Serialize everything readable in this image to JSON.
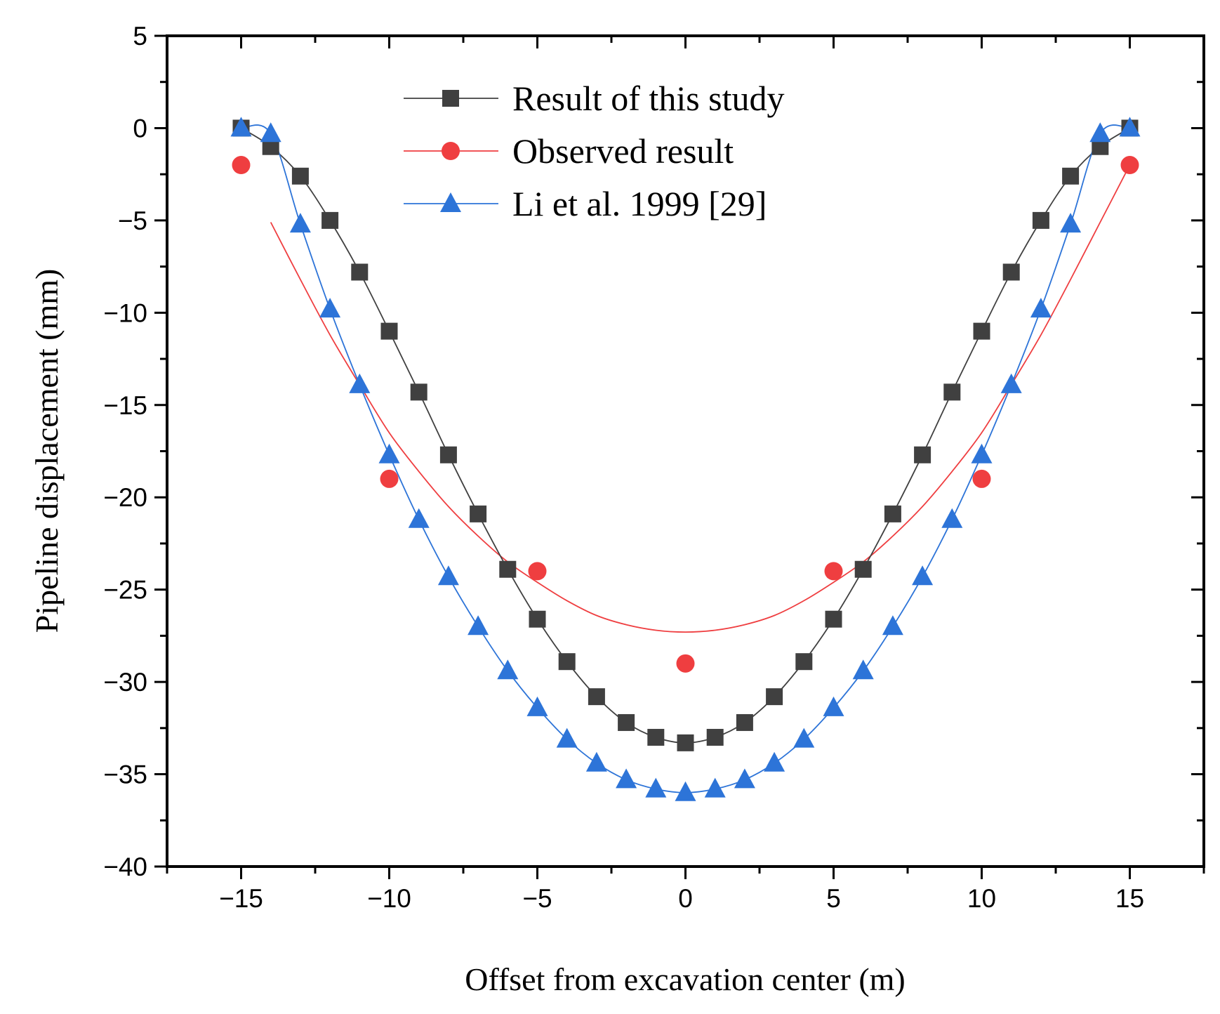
{
  "chart_data": {
    "type": "line",
    "title": "",
    "xlabel": "Offset from excavation center (m)",
    "ylabel": "Pipeline displacement (mm)",
    "xlim": [
      -17.5,
      17.5
    ],
    "ylim": [
      -40,
      5
    ],
    "xticks": [
      -15,
      -10,
      -5,
      0,
      5,
      10,
      15
    ],
    "yticks": [
      5,
      0,
      -5,
      -10,
      -15,
      -20,
      -25,
      -30,
      -35,
      -40
    ],
    "xtick_labels": [
      "−15",
      "−10",
      "−5",
      "0",
      "5",
      "10",
      "15"
    ],
    "ytick_labels": [
      "5",
      "0",
      "−5",
      "−10",
      "−15",
      "−20",
      "−25",
      "−30",
      "−35",
      "−40"
    ],
    "legend_position": "top-center",
    "series": [
      {
        "name": "Result of this study",
        "color": "#404040",
        "marker": "square",
        "x": [
          -15,
          -14,
          -13,
          -12,
          -11,
          -10,
          -9,
          -8,
          -7,
          -6,
          -5,
          -4,
          -3,
          -2,
          -1,
          0,
          1,
          2,
          3,
          4,
          5,
          6,
          7,
          8,
          9,
          10,
          11,
          12,
          13,
          14,
          15
        ],
        "values": [
          0,
          -1,
          -2.6,
          -5,
          -7.8,
          -11,
          -14.3,
          -17.7,
          -20.9,
          -23.9,
          -26.6,
          -28.9,
          -30.8,
          -32.2,
          -33,
          -33.3,
          -33,
          -32.2,
          -30.8,
          -28.9,
          -26.6,
          -23.9,
          -20.9,
          -17.7,
          -14.3,
          -11,
          -7.8,
          -5,
          -2.6,
          -1,
          0
        ]
      },
      {
        "name": "Observed result",
        "color": "#ef3e40",
        "marker": "circle",
        "x": [
          -15,
          -10,
          -5,
          0,
          5,
          10,
          15
        ],
        "values": [
          -2,
          -19,
          -24,
          -29,
          -24,
          -19,
          -2
        ],
        "fit_line": {
          "x": [
            -14,
            -13,
            -12,
            -11,
            -10,
            -9,
            -8,
            -7,
            -6,
            -5,
            -4,
            -3,
            -2,
            -1,
            0,
            1,
            2,
            3,
            4,
            5,
            6,
            7,
            8,
            9,
            10,
            11,
            12,
            13,
            14,
            15
          ],
          "values": [
            -5.1,
            -8.2,
            -11.2,
            -13.9,
            -16.5,
            -18.6,
            -20.5,
            -22.1,
            -23.5,
            -24.6,
            -25.6,
            -26.4,
            -26.9,
            -27.2,
            -27.3,
            -27.2,
            -26.9,
            -26.4,
            -25.6,
            -24.6,
            -23.5,
            -22.1,
            -20.5,
            -18.6,
            -16.5,
            -13.9,
            -11.2,
            -8.2,
            -5.1,
            -2
          ]
        }
      },
      {
        "name": "Li et al. 1999 [29]",
        "color": "#2d74d8",
        "marker": "triangle",
        "x": [
          -15,
          -14,
          -13,
          -12,
          -11,
          -10,
          -9,
          -8,
          -7,
          -6,
          -5,
          -4,
          -3,
          -2,
          -1,
          0,
          1,
          2,
          3,
          4,
          5,
          6,
          7,
          8,
          9,
          10,
          11,
          12,
          13,
          14,
          15
        ],
        "values": [
          0,
          -0.3,
          -5.2,
          -9.8,
          -13.9,
          -17.7,
          -21.2,
          -24.3,
          -27,
          -29.4,
          -31.4,
          -33.1,
          -34.4,
          -35.3,
          -35.8,
          -36,
          -35.8,
          -35.3,
          -34.4,
          -33.1,
          -31.4,
          -29.4,
          -27,
          -24.3,
          -21.2,
          -17.7,
          -13.9,
          -9.8,
          -5.2,
          -0.3,
          0
        ]
      }
    ]
  }
}
